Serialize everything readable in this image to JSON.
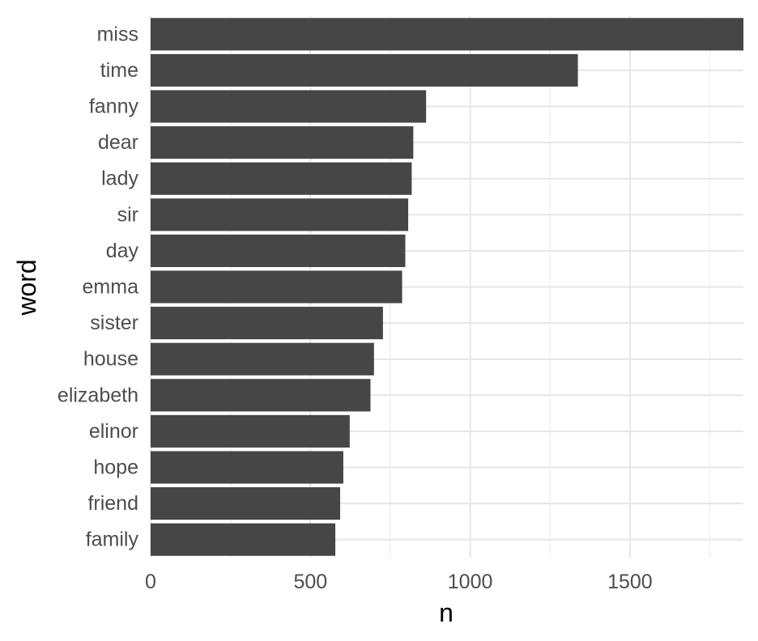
{
  "chart_data": {
    "type": "bar",
    "orientation": "horizontal",
    "categories": [
      "miss",
      "time",
      "fanny",
      "dear",
      "lady",
      "sir",
      "day",
      "emma",
      "sister",
      "house",
      "elizabeth",
      "elinor",
      "hope",
      "friend",
      "family"
    ],
    "values": [
      1855,
      1337,
      862,
      822,
      817,
      806,
      797,
      787,
      727,
      699,
      688,
      623,
      603,
      593,
      578
    ],
    "xlabel": "n",
    "ylabel": "word",
    "xlim": [
      0,
      1855
    ],
    "xticks": [
      0,
      500,
      1000,
      1500
    ],
    "grid": true,
    "legend": "none",
    "colors": {
      "bar": "#464646",
      "grid": "#e6e6e6",
      "tick_text": "#4d4d4d",
      "axis_title": "#000000"
    }
  }
}
